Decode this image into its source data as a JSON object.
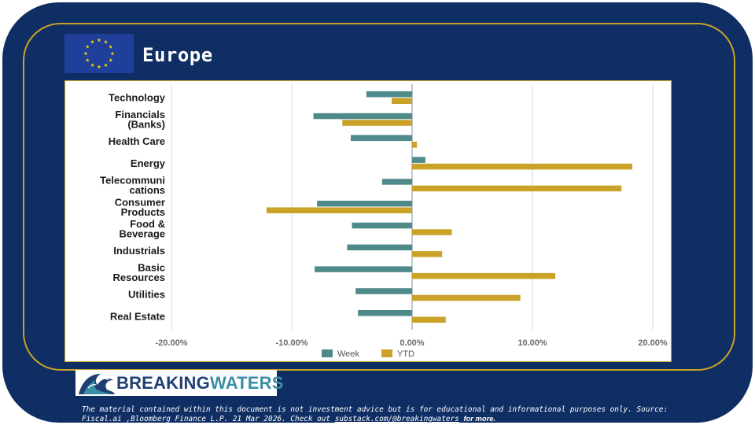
{
  "page": {
    "title": "Europe",
    "flag_icon": "eu-flag-icon"
  },
  "colors": {
    "background": "#0f2e64",
    "frame": "#c9a227",
    "week": "#4f8a8b",
    "ytd": "#c9a227",
    "text_dark": "#1a1a1a",
    "text_light": "#ffffff"
  },
  "chart_data": {
    "type": "bar",
    "orientation": "horizontal",
    "categories": [
      [
        "Technology"
      ],
      [
        "Financials",
        "(Banks)"
      ],
      [
        "Health Care"
      ],
      [
        "Energy"
      ],
      [
        "Telecommuni",
        "cations"
      ],
      [
        "Consumer",
        "Products"
      ],
      [
        "Food &",
        "Beverage"
      ],
      [
        "Industrials"
      ],
      [
        "Basic",
        "Resources"
      ],
      [
        "Utilities"
      ],
      [
        "Real Estate"
      ]
    ],
    "series": [
      {
        "name": "Week",
        "values": [
          -3.8,
          -8.2,
          -5.1,
          1.1,
          -2.5,
          -7.9,
          -5.0,
          -5.4,
          -8.1,
          -4.7,
          -4.5
        ]
      },
      {
        "name": "YTD",
        "values": [
          -1.7,
          -5.8,
          0.4,
          18.3,
          17.4,
          -12.1,
          3.3,
          2.5,
          11.9,
          9.0,
          2.8
        ]
      }
    ],
    "xlim": [
      -20,
      20
    ],
    "xticks": [
      -20,
      -10,
      0,
      10,
      20
    ],
    "xtick_labels": [
      "-20.00%",
      "-10.00%",
      "0.00%",
      "10.00%",
      "20.00%"
    ],
    "grid": true,
    "legend": [
      "Week",
      "YTD"
    ],
    "legend_position": "bottom"
  },
  "logo": {
    "part1": "BREAKING",
    "part2": "WATERS"
  },
  "footer": {
    "disclaimer": "The material contained within this document is not investment advice but is for educational and informational purposes only. Source: Fiscal.ai ,Bloomberg Finance L.P. 21 Mar 2026. Check out",
    "link_text": "substack.com/@breakingwaters",
    "more_text": "for more."
  }
}
